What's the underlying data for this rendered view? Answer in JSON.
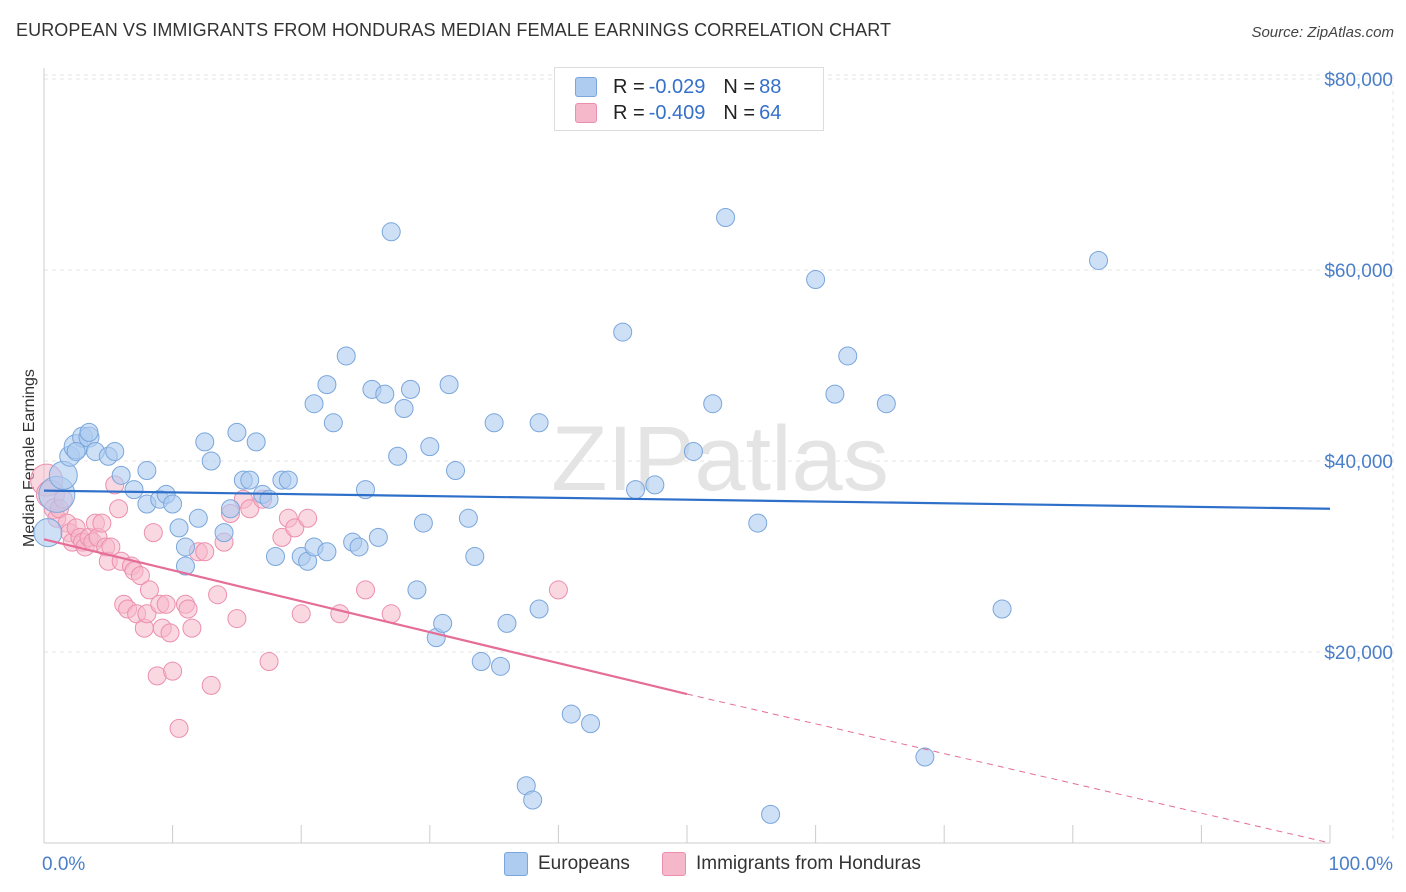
{
  "title": "EUROPEAN VS IMMIGRANTS FROM HONDURAS MEDIAN FEMALE EARNINGS CORRELATION CHART",
  "source": "Source: ZipAtlas.com",
  "watermark": "ZIPatlas",
  "legend": {
    "rows": [
      {
        "r_label": "R = ",
        "r_value": "-0.029",
        "n_label": "N = ",
        "n_value": "88",
        "color": "#aecbf0"
      },
      {
        "r_label": "R = ",
        "r_value": "-0.409",
        "n_label": "N = ",
        "n_value": "64",
        "color": "#f5b8cb"
      }
    ]
  },
  "bottom_legend": [
    "Europeans",
    "Immigrants from Honduras"
  ],
  "colors": {
    "blue_fill": "#aecbf0",
    "blue_stroke": "#7aa6dc",
    "blue_line": "#2e6fc9",
    "pink_fill": "#f5b8cb",
    "pink_stroke": "#ec8fae",
    "pink_line": "#e56d97",
    "axis_text": "#4a7fc8"
  },
  "chart_data": {
    "type": "scatter",
    "title": "EUROPEAN VS IMMIGRANTS FROM HONDURAS MEDIAN FEMALE EARNINGS CORRELATION CHART",
    "xlabel": "",
    "ylabel": "Median Female Earnings",
    "xlim": [
      0,
      100
    ],
    "ylim": [
      0,
      80000
    ],
    "x_tick_labels": [
      "0.0%",
      "100.0%"
    ],
    "y_ticks": [
      20000,
      40000,
      60000,
      80000
    ],
    "y_tick_labels": [
      "$20,000",
      "$40,000",
      "$60,000",
      "$80,000"
    ],
    "grid": true,
    "series": [
      {
        "name": "Europeans",
        "r": -0.029,
        "n": 88,
        "trend": {
          "x": [
            0,
            100
          ],
          "y": [
            36900,
            35000
          ]
        },
        "points": [
          [
            0.3,
            32500,
            14
          ],
          [
            1.0,
            36500,
            18
          ],
          [
            1.5,
            38500,
            14
          ],
          [
            2.0,
            40500,
            10
          ],
          [
            2.5,
            41500,
            12
          ],
          [
            3.0,
            42500,
            10
          ],
          [
            3.5,
            42500,
            10
          ],
          [
            4.0,
            41000,
            9
          ],
          [
            5.0,
            40500,
            9
          ],
          [
            6.0,
            38500,
            9
          ],
          [
            7.0,
            37000,
            9
          ],
          [
            8.0,
            35500,
            9
          ],
          [
            8.0,
            39000,
            9
          ],
          [
            9.0,
            36000,
            9
          ],
          [
            9.5,
            36500,
            9
          ],
          [
            10.0,
            35500,
            9
          ],
          [
            10.5,
            33000,
            9
          ],
          [
            11.0,
            31000,
            9
          ],
          [
            11.0,
            29000,
            9
          ],
          [
            12.0,
            34000,
            9
          ],
          [
            12.5,
            42000,
            9
          ],
          [
            13.0,
            40000,
            9
          ],
          [
            14.0,
            32500,
            9
          ],
          [
            14.5,
            35000,
            9
          ],
          [
            15.0,
            43000,
            9
          ],
          [
            15.5,
            38000,
            9
          ],
          [
            16.0,
            38000,
            9
          ],
          [
            16.5,
            42000,
            9
          ],
          [
            17.0,
            36500,
            9
          ],
          [
            17.5,
            36000,
            9
          ],
          [
            18.0,
            30000,
            9
          ],
          [
            18.5,
            38000,
            9
          ],
          [
            19.0,
            38000,
            9
          ],
          [
            20.0,
            30000,
            9
          ],
          [
            20.5,
            29500,
            9
          ],
          [
            21.0,
            31000,
            9
          ],
          [
            22.0,
            30500,
            9
          ],
          [
            21.0,
            46000,
            9
          ],
          [
            22.0,
            48000,
            9
          ],
          [
            22.5,
            44000,
            9
          ],
          [
            23.5,
            51000,
            9
          ],
          [
            24.0,
            31500,
            9
          ],
          [
            24.5,
            31000,
            9
          ],
          [
            25.0,
            37000,
            9
          ],
          [
            25.5,
            47500,
            9
          ],
          [
            26.0,
            32000,
            9
          ],
          [
            26.5,
            47000,
            9
          ],
          [
            27.0,
            64000,
            9
          ],
          [
            27.5,
            40500,
            9
          ],
          [
            28.0,
            45500,
            9
          ],
          [
            28.5,
            47500,
            9
          ],
          [
            29.0,
            26500,
            9
          ],
          [
            29.5,
            33500,
            9
          ],
          [
            30.0,
            41500,
            9
          ],
          [
            30.5,
            21500,
            9
          ],
          [
            31.0,
            23000,
            9
          ],
          [
            31.5,
            48000,
            9
          ],
          [
            32.0,
            39000,
            9
          ],
          [
            33.0,
            34000,
            9
          ],
          [
            33.5,
            30000,
            9
          ],
          [
            34.0,
            19000,
            9
          ],
          [
            35.5,
            18500,
            9
          ],
          [
            35.0,
            44000,
            9
          ],
          [
            36.0,
            23000,
            9
          ],
          [
            37.5,
            6000,
            9
          ],
          [
            38.0,
            4500,
            9
          ],
          [
            38.5,
            24500,
            9
          ],
          [
            38.5,
            44000,
            9
          ],
          [
            41.0,
            13500,
            9
          ],
          [
            42.5,
            12500,
            9
          ],
          [
            45.0,
            53500,
            9
          ],
          [
            46.0,
            37000,
            9
          ],
          [
            47.5,
            37500,
            9
          ],
          [
            50.5,
            41000,
            9
          ],
          [
            52.0,
            46000,
            9
          ],
          [
            53.0,
            65500,
            9
          ],
          [
            55.5,
            33500,
            9
          ],
          [
            56.5,
            3000,
            9
          ],
          [
            60.0,
            59000,
            9
          ],
          [
            61.5,
            47000,
            9
          ],
          [
            62.5,
            51000,
            9
          ],
          [
            65.5,
            46000,
            9
          ],
          [
            68.5,
            9000,
            9
          ],
          [
            74.5,
            24500,
            9
          ],
          [
            82.0,
            61000,
            9
          ],
          [
            3.5,
            43000,
            9
          ],
          [
            5.5,
            41000,
            9
          ],
          [
            2.5,
            41000,
            9
          ]
        ]
      },
      {
        "name": "Immigrants from Honduras",
        "r": -0.409,
        "n": 64,
        "trend": {
          "x": [
            0,
            50
          ],
          "y": [
            31800,
            15600
          ]
        },
        "trend_dashed": {
          "x": [
            50,
            100
          ],
          "y": [
            15600,
            0
          ]
        },
        "points": [
          [
            0.2,
            38000,
            16
          ],
          [
            0.5,
            36500,
            14
          ],
          [
            0.8,
            35000,
            10
          ],
          [
            1.0,
            34000,
            9
          ],
          [
            1.2,
            35000,
            9
          ],
          [
            1.5,
            36000,
            9
          ],
          [
            1.8,
            33500,
            9
          ],
          [
            2.0,
            32500,
            9
          ],
          [
            2.2,
            31500,
            9
          ],
          [
            2.5,
            33000,
            9
          ],
          [
            2.8,
            32000,
            9
          ],
          [
            3.0,
            31500,
            9
          ],
          [
            3.2,
            31000,
            9
          ],
          [
            3.5,
            32000,
            9
          ],
          [
            3.8,
            31500,
            9
          ],
          [
            4.0,
            33500,
            9
          ],
          [
            4.2,
            32000,
            9
          ],
          [
            4.5,
            33500,
            9
          ],
          [
            4.8,
            31000,
            9
          ],
          [
            5.0,
            29500,
            9
          ],
          [
            5.2,
            31000,
            9
          ],
          [
            5.5,
            37500,
            9
          ],
          [
            5.8,
            35000,
            9
          ],
          [
            6.0,
            29500,
            9
          ],
          [
            6.2,
            25000,
            9
          ],
          [
            6.5,
            24500,
            9
          ],
          [
            6.8,
            29000,
            9
          ],
          [
            7.0,
            28500,
            9
          ],
          [
            7.2,
            24000,
            9
          ],
          [
            7.5,
            28000,
            9
          ],
          [
            7.8,
            22500,
            9
          ],
          [
            8.0,
            24000,
            9
          ],
          [
            8.2,
            26500,
            9
          ],
          [
            8.5,
            32500,
            9
          ],
          [
            8.8,
            17500,
            9
          ],
          [
            9.0,
            25000,
            9
          ],
          [
            9.2,
            22500,
            9
          ],
          [
            9.5,
            25000,
            9
          ],
          [
            9.8,
            22000,
            9
          ],
          [
            10.0,
            18000,
            9
          ],
          [
            10.5,
            12000,
            9
          ],
          [
            11.0,
            25000,
            9
          ],
          [
            11.2,
            24500,
            9
          ],
          [
            11.5,
            22500,
            9
          ],
          [
            12.0,
            30500,
            9
          ],
          [
            12.5,
            30500,
            9
          ],
          [
            13.0,
            16500,
            9
          ],
          [
            13.5,
            26000,
            9
          ],
          [
            14.0,
            31500,
            9
          ],
          [
            14.5,
            34500,
            9
          ],
          [
            15.0,
            23500,
            9
          ],
          [
            15.5,
            36000,
            9
          ],
          [
            16.0,
            35000,
            9
          ],
          [
            17.0,
            36000,
            9
          ],
          [
            17.5,
            19000,
            9
          ],
          [
            18.5,
            32000,
            9
          ],
          [
            19.0,
            34000,
            9
          ],
          [
            19.5,
            33000,
            9
          ],
          [
            20.0,
            24000,
            9
          ],
          [
            20.5,
            34000,
            9
          ],
          [
            23.0,
            24000,
            9
          ],
          [
            25.0,
            26500,
            9
          ],
          [
            27.0,
            24000,
            9
          ],
          [
            40.0,
            26500,
            9
          ]
        ]
      }
    ]
  }
}
